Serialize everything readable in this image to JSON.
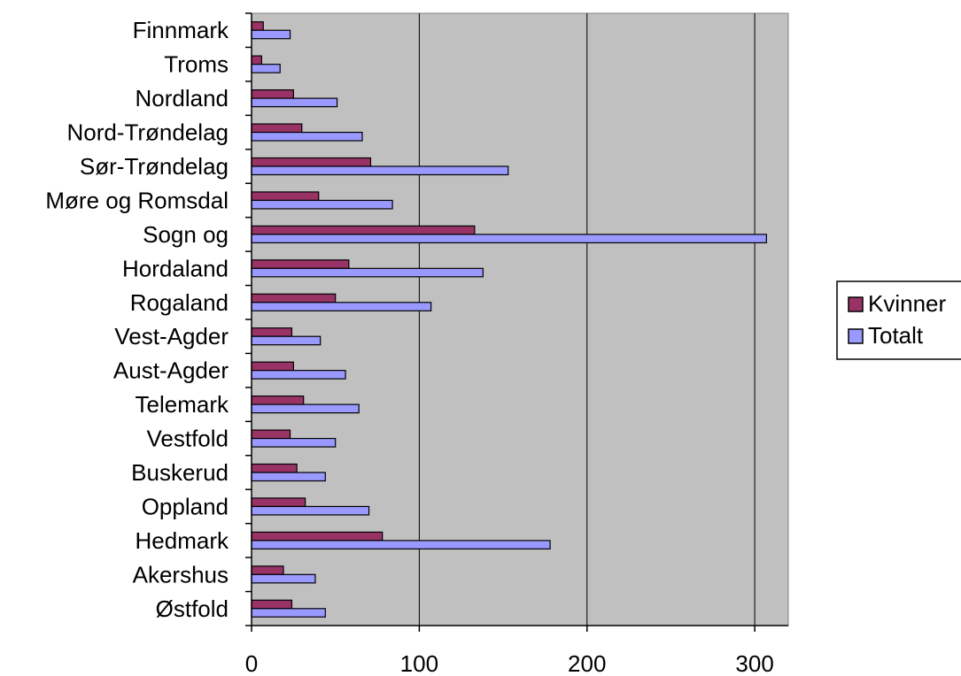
{
  "chart_data": {
    "type": "bar",
    "orientation": "horizontal",
    "title": "",
    "xlabel": "",
    "ylabel": "",
    "categories": [
      "Finnmark",
      "Troms",
      "Nordland",
      "Nord-Trøndelag",
      "Sør-Trøndelag",
      "Møre og Romsdal",
      "Sogn og",
      "Hordaland",
      "Rogaland",
      "Vest-Agder",
      "Aust-Agder",
      "Telemark",
      "Vestfold",
      "Buskerud",
      "Oppland",
      "Hedmark",
      "Akershus",
      "Østfold"
    ],
    "series": [
      {
        "name": "Kvinner",
        "color": "#993366",
        "values": [
          7,
          6,
          25,
          30,
          71,
          40,
          133,
          58,
          50,
          24,
          25,
          31,
          23,
          27,
          32,
          78,
          19,
          24
        ]
      },
      {
        "name": "Totalt",
        "color": "#9999ff",
        "values": [
          23,
          17,
          51,
          66,
          153,
          84,
          307,
          138,
          107,
          41,
          56,
          64,
          50,
          44,
          70,
          178,
          38,
          44
        ]
      }
    ],
    "xlim": [
      0,
      320
    ],
    "xticks": [
      0,
      100,
      200,
      300
    ],
    "grid": true,
    "plot_background": "#c0c0c0",
    "legend": "right"
  }
}
